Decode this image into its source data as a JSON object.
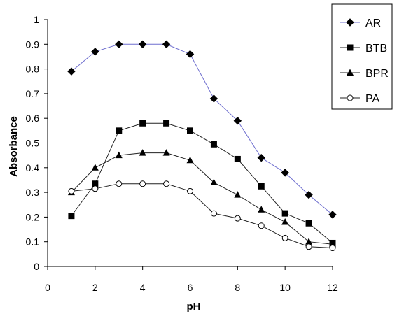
{
  "chart_data": {
    "type": "line",
    "title": "",
    "xlabel": "pH",
    "ylabel": "Absorbance",
    "xlim": [
      0,
      12
    ],
    "ylim": [
      0,
      1
    ],
    "xticks": [
      "0",
      "2",
      "4",
      "6",
      "8",
      "10",
      "12"
    ],
    "yticks": [
      "0",
      "0.1",
      "0.2",
      "0.3",
      "0.4",
      "0.5",
      "0.6",
      "0.7",
      "0.8",
      "0.9",
      "1"
    ],
    "grid": false,
    "legend_position": "top-right",
    "x": [
      1,
      2,
      3,
      4,
      5,
      6,
      7,
      8,
      9,
      10,
      11,
      12
    ],
    "series": [
      {
        "name": "AR",
        "marker": "diamond",
        "color": "#6f6fcf",
        "values": [
          0.79,
          0.87,
          0.9,
          0.9,
          0.9,
          0.86,
          0.68,
          0.59,
          0.44,
          0.38,
          0.29,
          0.21
        ]
      },
      {
        "name": "BTB",
        "marker": "square",
        "color": "#222222",
        "values": [
          0.205,
          0.335,
          0.55,
          0.58,
          0.58,
          0.55,
          0.495,
          0.435,
          0.325,
          0.215,
          0.175,
          0.095
        ]
      },
      {
        "name": "BPR",
        "marker": "triangle",
        "color": "#222222",
        "values": [
          0.3,
          0.4,
          0.45,
          0.46,
          0.46,
          0.43,
          0.34,
          0.29,
          0.23,
          0.18,
          0.1,
          0.09
        ]
      },
      {
        "name": "PA",
        "marker": "circle",
        "color": "#222222",
        "values": [
          0.305,
          0.315,
          0.335,
          0.335,
          0.335,
          0.305,
          0.215,
          0.195,
          0.165,
          0.115,
          0.08,
          0.075
        ]
      }
    ]
  }
}
